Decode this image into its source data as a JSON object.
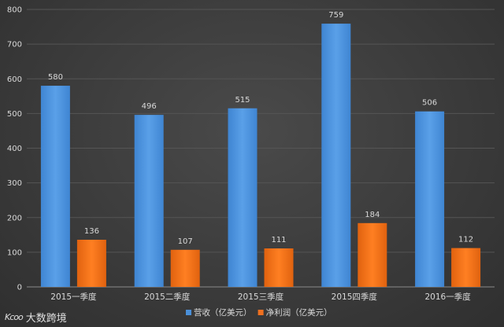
{
  "chart_data": {
    "type": "bar",
    "categories": [
      "2015一季度",
      "2015二季度",
      "2015三季度",
      "2015四季度",
      "2016一季度"
    ],
    "series": [
      {
        "name": "营收（亿美元）",
        "values": [
          580,
          496,
          515,
          759,
          506
        ],
        "color": "#4a90d9"
      },
      {
        "name": "净利润（亿美元）",
        "values": [
          136,
          107,
          111,
          184,
          112
        ],
        "color": "#f07020"
      }
    ],
    "ylim": [
      0,
      800
    ],
    "yticks": [
      0,
      100,
      200,
      300,
      400,
      500,
      600,
      700,
      800
    ],
    "grid": true,
    "legend": "bottom"
  },
  "watermark": {
    "logo": "Kcoo",
    "text": "大数跨境"
  }
}
